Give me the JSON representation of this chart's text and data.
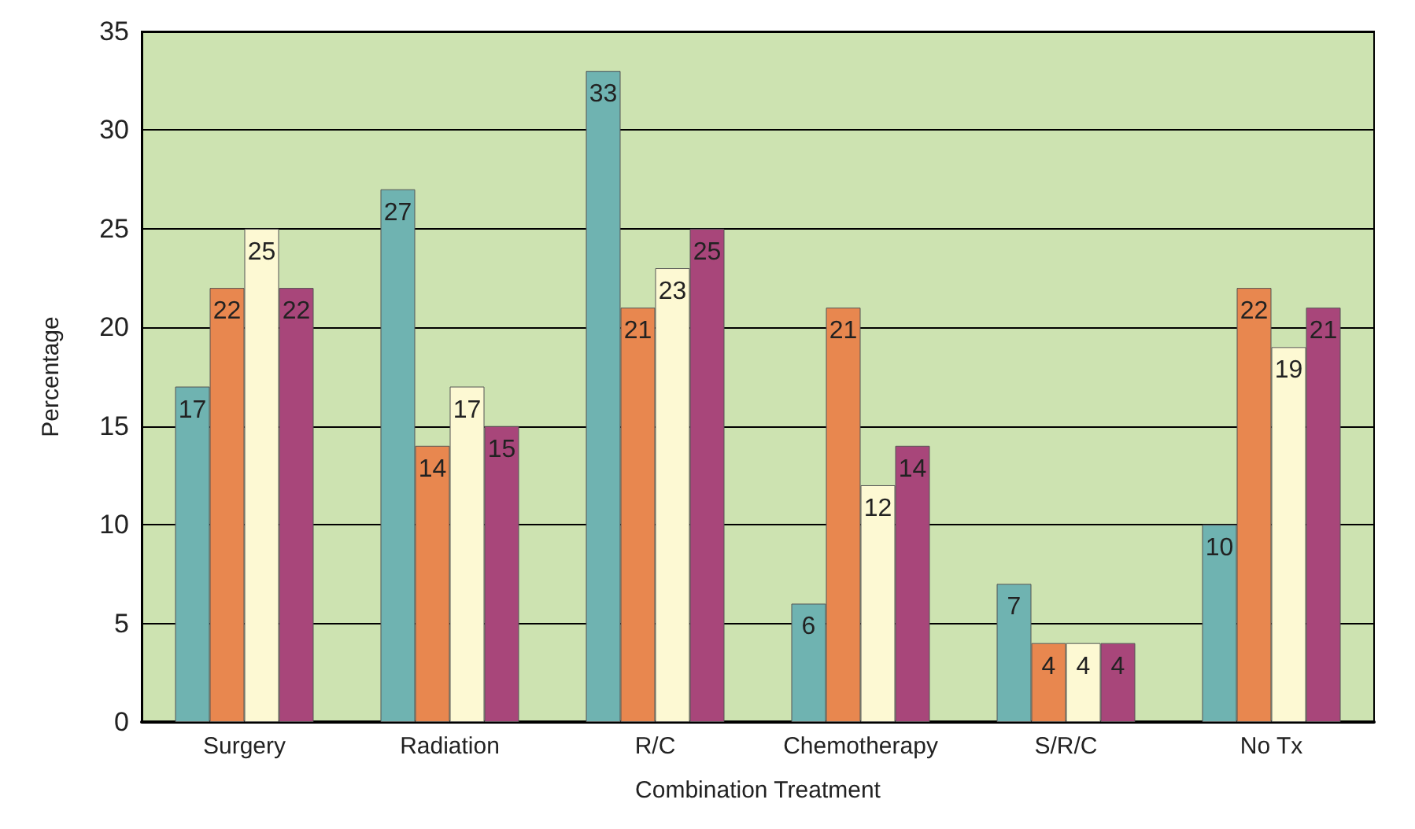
{
  "chart_data": {
    "type": "bar",
    "xlabel": "Combination Treatment",
    "ylabel": "Percentage",
    "categories": [
      "Surgery",
      "Radiation",
      "R/C",
      "Chemotherapy",
      "S/R/C",
      "No Tx"
    ],
    "series": [
      {
        "color": "#6fb3b1",
        "values": [
          17,
          27,
          33,
          6,
          7,
          10
        ]
      },
      {
        "color": "#e8874f",
        "values": [
          22,
          14,
          21,
          21,
          4,
          22
        ]
      },
      {
        "color": "#fdf9d3",
        "values": [
          25,
          17,
          23,
          12,
          4,
          19
        ]
      },
      {
        "color": "#a8467a",
        "values": [
          22,
          15,
          25,
          14,
          4,
          21
        ]
      }
    ],
    "ylim": [
      0,
      35
    ],
    "yticks": [
      0,
      5,
      10,
      15,
      20,
      25,
      30,
      35
    ],
    "grid": "y",
    "data_labels": true
  }
}
